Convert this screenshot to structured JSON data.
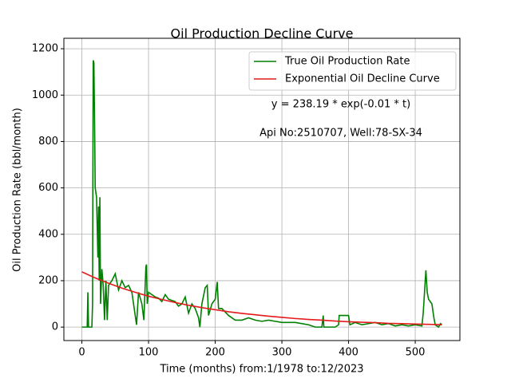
{
  "chart_data": {
    "type": "line",
    "title": "Oil Production Decline Curve",
    "xlabel": "Time (months) from:1/1978 to:12/2023",
    "ylabel": "Oil Production Rate (bbl/month)",
    "annotations": [
      "y = 238.19 * exp(-0.01 * t)",
      "Api No:2510707, Well:78-SX-34"
    ],
    "xlim": [
      -27,
      567
    ],
    "ylim": [
      -58,
      1245
    ],
    "xticks": [
      0,
      100,
      200,
      300,
      400,
      500
    ],
    "yticks": [
      0,
      200,
      400,
      600,
      800,
      1000,
      1200
    ],
    "grid": true,
    "legend": "upper right",
    "series": [
      {
        "name": "True Oil Production Rate",
        "color": "#008000",
        "x": [
          0,
          8,
          9,
          10,
          15,
          16,
          17,
          18,
          19,
          20,
          22,
          24,
          25,
          26,
          27,
          28,
          30,
          32,
          34,
          36,
          38,
          40,
          45,
          50,
          55,
          60,
          65,
          70,
          75,
          80,
          82,
          85,
          90,
          93,
          96,
          97,
          98,
          100,
          110,
          115,
          120,
          125,
          130,
          140,
          145,
          150,
          155,
          160,
          165,
          170,
          175,
          177,
          180,
          185,
          188,
          190,
          195,
          200,
          203,
          205,
          210,
          220,
          230,
          240,
          250,
          260,
          270,
          280,
          290,
          300,
          320,
          340,
          350,
          360,
          362,
          363,
          380,
          385,
          386,
          400,
          402,
          410,
          420,
          430,
          440,
          450,
          460,
          470,
          480,
          490,
          500,
          510,
          512,
          515,
          516,
          518,
          520,
          525,
          528,
          530,
          535,
          538,
          540
        ],
        "values": [
          0,
          0,
          150,
          0,
          0,
          100,
          1150,
          1140,
          900,
          600,
          560,
          300,
          520,
          200,
          560,
          100,
          250,
          180,
          30,
          200,
          30,
          180,
          200,
          230,
          160,
          200,
          170,
          180,
          150,
          50,
          10,
          150,
          100,
          30,
          260,
          270,
          100,
          150,
          130,
          125,
          110,
          140,
          120,
          110,
          90,
          100,
          130,
          60,
          100,
          80,
          40,
          0,
          100,
          170,
          180,
          50,
          100,
          120,
          195,
          80,
          80,
          50,
          30,
          30,
          40,
          30,
          25,
          30,
          25,
          20,
          20,
          10,
          0,
          0,
          50,
          0,
          0,
          10,
          50,
          50,
          10,
          20,
          10,
          15,
          20,
          10,
          15,
          5,
          10,
          5,
          10,
          5,
          60,
          200,
          245,
          150,
          120,
          100,
          40,
          10,
          0,
          15,
          10
        ]
      },
      {
        "name": "Exponential Oil Decline Curve",
        "color": "#e41a1c",
        "x": [
          0,
          20,
          40,
          60,
          80,
          100,
          120,
          140,
          160,
          180,
          200,
          220,
          240,
          260,
          280,
          300,
          320,
          340,
          360,
          380,
          400,
          420,
          440,
          460,
          480,
          500,
          520,
          540
        ],
        "values": [
          238,
          212,
          189,
          168,
          150,
          133,
          119,
          106,
          94,
          84,
          75,
          66,
          59,
          53,
          47,
          42,
          37,
          33,
          30,
          26,
          23,
          21,
          19,
          16,
          15,
          13,
          12,
          10
        ]
      }
    ]
  }
}
